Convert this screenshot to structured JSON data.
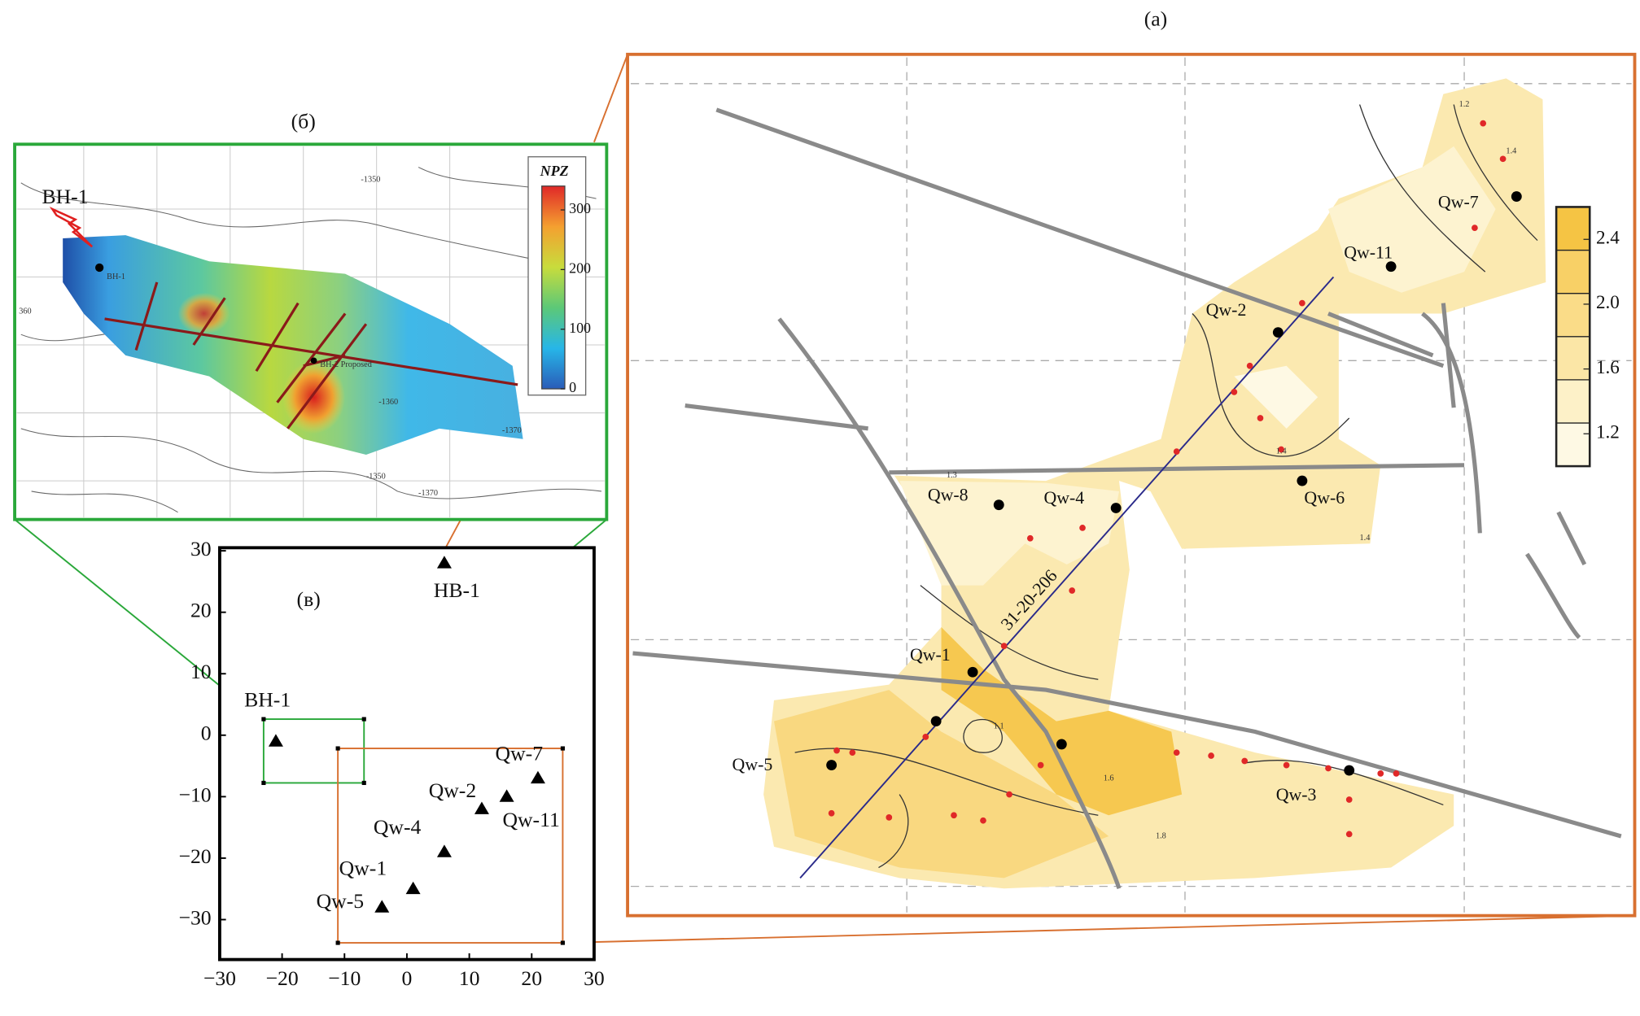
{
  "panel_a": {
    "label": "(a)",
    "wells": [
      "Qw-7",
      "Qw-11",
      "Qw-2",
      "Qw-8",
      "Qw-4",
      "Qw-6",
      "Qw-1",
      "Qw-5",
      "Qw-3"
    ],
    "profile": "31-20-206",
    "contour_labels": [
      "1.2",
      "1.4",
      "1.4",
      "1.1",
      "1.3",
      "1.4",
      "1.8",
      "1.6"
    ],
    "colorbar": {
      "lim": [
        1.0,
        2.6
      ],
      "ticks": [
        1.2,
        1.6,
        {
          "value": 2,
          "label": "2.0"
        },
        2.4
      ],
      "colors": [
        "#fef9e4",
        "#fdf1c8",
        "#fbe6a6",
        "#fadc88",
        "#f8d066",
        "#f5c444"
      ]
    }
  },
  "panel_b": {
    "label": "(б)",
    "well": "BH-1",
    "well_small": "BH-1",
    "proposed": "BH-2 Proposed",
    "contour_labels": [
      "-1350",
      "-1360",
      "-1370",
      "-1350",
      "-1370",
      "360"
    ],
    "colorbar": {
      "title": "NPZ",
      "lim": [
        0,
        340
      ],
      "ticks": [
        0,
        100,
        200,
        300
      ],
      "colors": [
        "#2a5cb8",
        "#27b6e8",
        "#5cc878",
        "#c8dc3c",
        "#f4a030",
        "#e02828"
      ]
    }
  },
  "chart_data": {
    "type": "scatter",
    "title": "(в)",
    "x": [
      6,
      -21,
      21,
      16,
      12,
      6,
      1,
      -4
    ],
    "values": [
      28,
      -1,
      -7,
      -10,
      -12,
      -19,
      -25,
      -28
    ],
    "point_labels": [
      "HB-1",
      "BH-1",
      "Qw-7",
      "Qw-11",
      "Qw-2",
      "Qw-4",
      "Qw-1",
      "Qw-5"
    ],
    "color": "#000000",
    "xlim": [
      -30,
      30
    ],
    "ylim": [
      -36.5,
      30.5
    ],
    "xticks": [
      {
        "value": -30,
        "label": "−30"
      },
      {
        "value": -20,
        "label": "−20"
      },
      {
        "value": -10,
        "label": "−10"
      },
      0,
      10,
      20,
      30
    ],
    "yticks": [
      30,
      20,
      10,
      0,
      {
        "value": -10,
        "label": "−10"
      },
      {
        "value": -20,
        "label": "−20"
      },
      {
        "value": -30,
        "label": "−30"
      }
    ]
  }
}
